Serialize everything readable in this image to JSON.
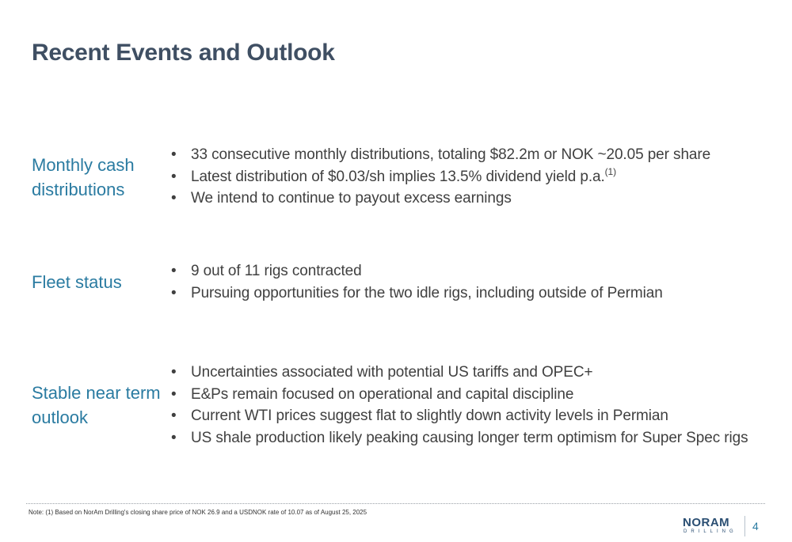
{
  "title": "Recent Events and Outlook",
  "sections": [
    {
      "label_lines": [
        "Monthly cash",
        "distributions"
      ],
      "bullets": [
        {
          "text": "33 consecutive monthly distributions, totaling $82.2m or NOK ~20.05 per share",
          "sup": ""
        },
        {
          "text": "Latest distribution of $0.03/sh implies 13.5% dividend yield p.a.",
          "sup": "(1)"
        },
        {
          "text": "We intend to continue to payout excess earnings",
          "sup": ""
        }
      ]
    },
    {
      "label_lines": [
        "Fleet status"
      ],
      "bullets": [
        {
          "text": "9 out of 11 rigs contracted",
          "sup": ""
        },
        {
          "text": "Pursuing opportunities for the two idle rigs, including outside of Permian",
          "sup": ""
        }
      ]
    },
    {
      "label_lines": [
        "Stable near term",
        "outlook"
      ],
      "bullets": [
        {
          "text": "Uncertainties associated with potential US tariffs and OPEC+",
          "sup": ""
        },
        {
          "text": "E&Ps remain focused on operational and capital discipline",
          "sup": ""
        },
        {
          "text": "Current WTI prices suggest flat to slightly down activity levels in Permian",
          "sup": ""
        },
        {
          "text": "US shale production likely peaking causing longer term optimism for Super Spec rigs",
          "sup": ""
        }
      ]
    }
  ],
  "bullet_char": "•",
  "footnote": "Note: (1) Based on NorAm Drilling's closing share price of NOK 26.9 and a USDNOK rate of 10.07 as of August 25, 2025",
  "logo": {
    "main": "NORAM",
    "sub": "DRILLING"
  },
  "page_number": "4",
  "colors": {
    "title": "#3f4f63",
    "label": "#2a7ba1",
    "body": "#404040",
    "logo": "#2a4e72"
  }
}
